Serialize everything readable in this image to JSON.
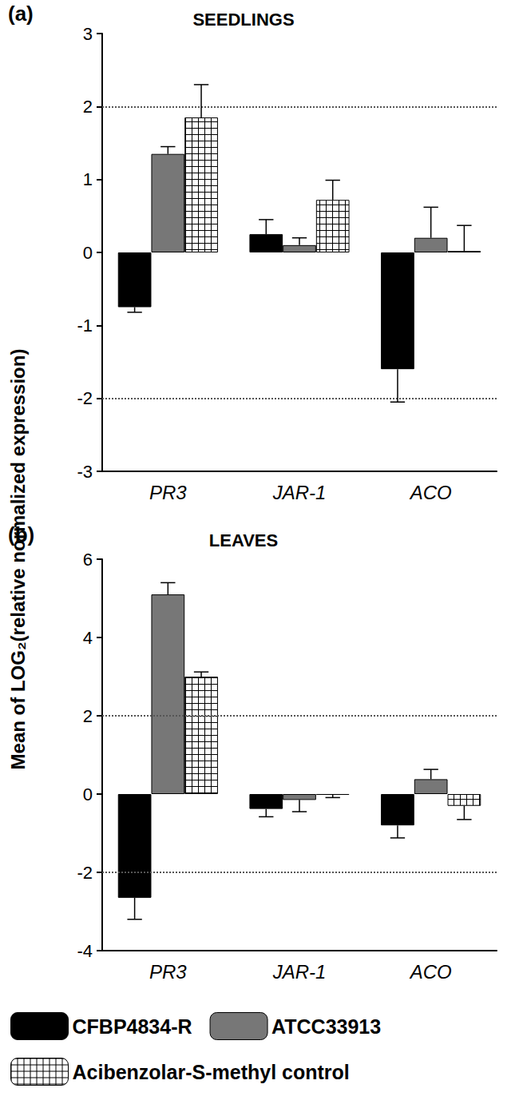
{
  "ylabel": "Mean of LOG₂(relative normalized expression)",
  "chart_data": [
    {
      "type": "bar",
      "panel_label": "(a)",
      "title": "SEEDLINGS",
      "categories": [
        "PR3",
        "JAR-1",
        "ACO"
      ],
      "series": [
        {
          "name": "CFBP4834-R",
          "color": "#000000",
          "values": [
            -0.75,
            0.25,
            -1.6
          ],
          "errors": [
            0.07,
            0.2,
            0.45
          ]
        },
        {
          "name": "ATCC33913",
          "color": "#777777",
          "values": [
            1.35,
            0.1,
            0.2
          ],
          "errors": [
            0.1,
            0.1,
            0.42
          ]
        },
        {
          "name": "Acibenzolar-S-methyl control",
          "color": "#ffffff",
          "marker": "grid",
          "values": [
            1.85,
            0.72,
            0.02
          ],
          "errors": [
            0.45,
            0.27,
            0.35
          ]
        }
      ],
      "ylim": [
        -3,
        3
      ],
      "yticks": [
        -3,
        -2,
        -1,
        0,
        1,
        2,
        3
      ],
      "reference_lines": [
        2,
        -2
      ],
      "grid": false,
      "legend": "bottom"
    },
    {
      "type": "bar",
      "panel_label": "(b)",
      "title": "LEAVES",
      "categories": [
        "PR3",
        "JAR-1",
        "ACO"
      ],
      "series": [
        {
          "name": "CFBP4834-R",
          "color": "#000000",
          "values": [
            -2.65,
            -0.38,
            -0.8
          ],
          "errors": [
            0.55,
            0.2,
            0.32
          ]
        },
        {
          "name": "ATCC33913",
          "color": "#777777",
          "values": [
            5.1,
            -0.15,
            0.38
          ],
          "errors": [
            0.3,
            0.3,
            0.25
          ]
        },
        {
          "name": "Acibenzolar-S-methyl control",
          "color": "#ffffff",
          "marker": "grid",
          "values": [
            3.0,
            -0.02,
            -0.3
          ],
          "errors": [
            0.12,
            0.07,
            0.35
          ]
        }
      ],
      "ylim": [
        -4,
        6
      ],
      "yticks": [
        -4,
        -2,
        0,
        2,
        4,
        6
      ],
      "reference_lines": [
        2,
        -2
      ],
      "grid": false
    }
  ]
}
